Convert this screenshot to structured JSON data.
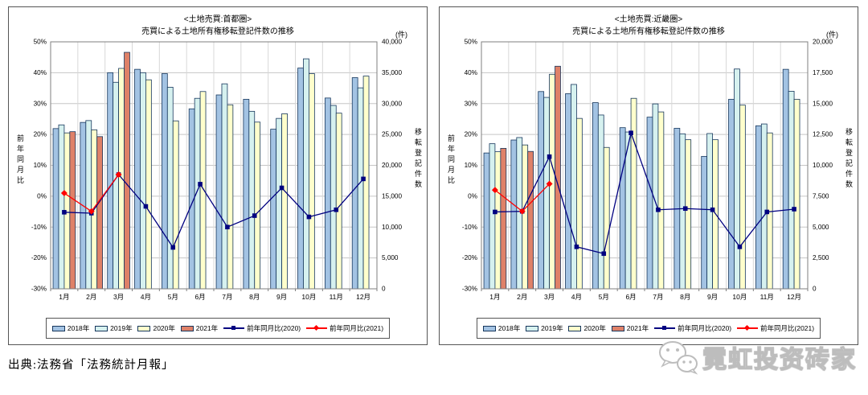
{
  "footer": {
    "source": "出典:法務省「法務統計月報」",
    "watermark": "霓虹投资砖家",
    "watermark_icon": "wechat-icon"
  },
  "style": {
    "bar_border": "#17375D",
    "grid_color": "#C6C6C6",
    "vgrid_color": "#D8D8D8",
    "plot_border": "#7F7F7F"
  },
  "chart_data": [
    {
      "type": "bar+line",
      "title": "<土地売買:首都圏>",
      "subtitle": "売買による土地所有権移転登記件数の推移",
      "categories": [
        "1月",
        "2月",
        "3月",
        "4月",
        "5月",
        "6月",
        "7月",
        "8月",
        "9月",
        "10月",
        "11月",
        "12月"
      ],
      "bars_axis": "right",
      "lines_axis": "left",
      "left_axis": {
        "title": "前年同月比",
        "min": -30,
        "max": 50,
        "step": 10,
        "ticks": [
          "50%",
          "40%",
          "30%",
          "20%",
          "10%",
          "0%",
          "-10%",
          "-20%",
          "-30%"
        ]
      },
      "right_axis": {
        "title": "移転登記件数",
        "unit": "(件)",
        "min": 0,
        "max": 40000,
        "step": 5000,
        "ticks": [
          "40,000",
          "35,000",
          "30,000",
          "25,000",
          "20,000",
          "15,000",
          "10,000",
          "5,000",
          "0"
        ]
      },
      "bar_series": [
        {
          "name": "2018年",
          "color": "#A3C3E3",
          "values": [
            25950,
            26950,
            35000,
            35550,
            34850,
            29150,
            31400,
            30700,
            25850,
            35750,
            30900,
            34200
          ]
        },
        {
          "name": "2019年",
          "color": "#D6F1EF",
          "values": [
            26550,
            27250,
            33450,
            35000,
            32650,
            30850,
            33200,
            28750,
            27600,
            37250,
            29700,
            32550
          ]
        },
        {
          "name": "2020年",
          "color": "#FFFFCC",
          "values": [
            25250,
            25750,
            35700,
            33850,
            27200,
            31950,
            29800,
            27000,
            28350,
            34850,
            28450,
            34450
          ]
        },
        {
          "name": "2021年",
          "color": "#DF8168",
          "values": [
            25450,
            24650,
            38300,
            null,
            null,
            null,
            null,
            null,
            null,
            null,
            null,
            null
          ]
        }
      ],
      "line_series": [
        {
          "name": "前年同月比(2020)",
          "color": "#000080",
          "marker": "square",
          "values": [
            -5.2,
            -5.5,
            7.0,
            -3.3,
            -16.6,
            3.9,
            -10.0,
            -6.3,
            2.7,
            -6.7,
            -4.4,
            5.6
          ]
        },
        {
          "name": "前年同月比(2021)",
          "color": "#FF0000",
          "marker": "diamond",
          "values": [
            1.0,
            -4.9,
            7.0,
            null,
            null,
            null,
            null,
            null,
            null,
            null,
            null,
            null
          ]
        }
      ]
    },
    {
      "type": "bar+line",
      "title": "<土地売買:近畿圏>",
      "subtitle": "売買による土地所有権移転登記件数の推移",
      "categories": [
        "1月",
        "2月",
        "3月",
        "4月",
        "5月",
        "6月",
        "7月",
        "8月",
        "9月",
        "10月",
        "11月",
        "12月"
      ],
      "bars_axis": "right",
      "lines_axis": "left",
      "left_axis": {
        "title": "前年同月比",
        "min": -30,
        "max": 50,
        "step": 10,
        "ticks": [
          "50%",
          "40%",
          "30%",
          "20%",
          "10%",
          "0%",
          "-10%",
          "-20%",
          "-30%"
        ]
      },
      "right_axis": {
        "title": "移転登記件数",
        "unit": "(件)",
        "min": 0,
        "max": 20000,
        "step": 2500,
        "ticks": [
          "20,000",
          "17,500",
          "15,000",
          "12,500",
          "10,000",
          "7,500",
          "5,000",
          "2,500",
          "0"
        ]
      },
      "bar_series": [
        {
          "name": "2018年",
          "color": "#A3C3E3",
          "values": [
            11000,
            12050,
            15975,
            15800,
            15075,
            13050,
            13900,
            13000,
            10725,
            15350,
            13200,
            17775
          ]
        },
        {
          "name": "2019年",
          "color": "#D6F1EF",
          "values": [
            11750,
            12250,
            15500,
            16550,
            14075,
            12700,
            14975,
            12550,
            12575,
            17800,
            13350,
            16000
          ]
        },
        {
          "name": "2020年",
          "color": "#FFFFCC",
          "values": [
            11100,
            11650,
            17375,
            13800,
            11450,
            15425,
            14325,
            12075,
            12075,
            14875,
            12625,
            15350
          ]
        },
        {
          "name": "2021年",
          "color": "#DF8168",
          "values": [
            11375,
            11125,
            18025,
            null,
            null,
            null,
            null,
            null,
            null,
            null,
            null,
            null
          ]
        }
      ],
      "line_series": [
        {
          "name": "前年同月比(2020)",
          "color": "#000080",
          "marker": "square",
          "values": [
            -5.1,
            -4.9,
            12.8,
            -16.4,
            -18.6,
            20.5,
            -4.4,
            -4.0,
            -4.4,
            -16.4,
            -5.1,
            -4.2
          ]
        },
        {
          "name": "前年同月比(2021)",
          "color": "#FF0000",
          "marker": "diamond",
          "values": [
            2.0,
            -4.9,
            4.0,
            null,
            null,
            null,
            null,
            null,
            null,
            null,
            null,
            null
          ]
        }
      ]
    }
  ]
}
